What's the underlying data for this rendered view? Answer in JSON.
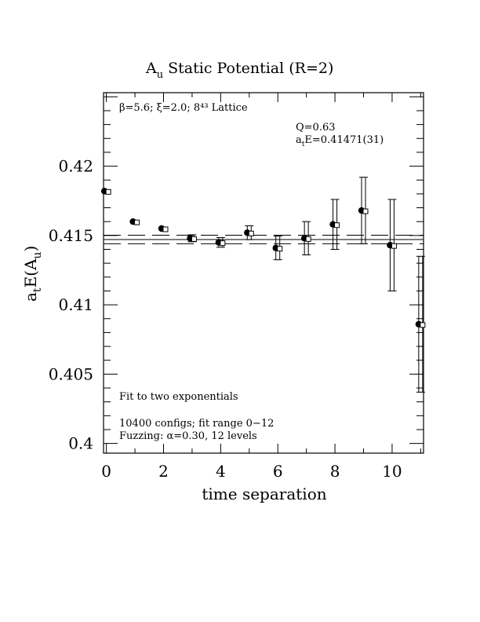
{
  "chart_data": {
    "type": "scatter",
    "title": "A",
    "title_sub": "u",
    "title_rest": " Static Potential (R=2)",
    "xlabel": "time separation",
    "ylabel_main": "a",
    "ylabel_sub1": "t",
    "ylabel_mid": "E(A",
    "ylabel_sub2": "u",
    "ylabel_end": ")",
    "xlim": [
      -0.1,
      11.1
    ],
    "ylim": [
      0.3993,
      0.4253
    ],
    "xticks": [
      {
        "v": 0,
        "label": "0"
      },
      {
        "v": 2,
        "label": "2"
      },
      {
        "v": 4,
        "label": "4"
      },
      {
        "v": 6,
        "label": "6"
      },
      {
        "v": 8,
        "label": "8"
      },
      {
        "v": 10,
        "label": "10"
      }
    ],
    "yticks": [
      {
        "v": 0.4,
        "label": "0.4"
      },
      {
        "v": 0.405,
        "label": "0.405"
      },
      {
        "v": 0.41,
        "label": "0.41"
      },
      {
        "v": 0.415,
        "label": "0.415"
      },
      {
        "v": 0.42,
        "label": "0.42"
      }
    ],
    "series": [
      {
        "marker": "filled-circle",
        "points": [
          {
            "x": 0,
            "y": 0.4182,
            "err": 3e-05
          },
          {
            "x": 1,
            "y": 0.416,
            "err": 5e-05
          },
          {
            "x": 2,
            "y": 0.4155,
            "err": 5e-05
          },
          {
            "x": 3,
            "y": 0.4148,
            "err": 0.00025
          },
          {
            "x": 4,
            "y": 0.4145,
            "err": 0.00035
          },
          {
            "x": 5,
            "y": 0.4152,
            "err": 0.0005
          },
          {
            "x": 6,
            "y": 0.4141,
            "err": 0.00085
          },
          {
            "x": 7,
            "y": 0.4148,
            "err": 0.0012
          },
          {
            "x": 8,
            "y": 0.4158,
            "err": 0.0018
          },
          {
            "x": 9,
            "y": 0.4168,
            "err": 0.0024
          },
          {
            "x": 10,
            "y": 0.4143,
            "err": 0.0033
          },
          {
            "x": 11,
            "y": 0.4086,
            "err": 0.0049
          }
        ]
      },
      {
        "marker": "open-square",
        "points": [
          {
            "x": 0,
            "y": 0.4182
          },
          {
            "x": 1,
            "y": 0.416
          },
          {
            "x": 2,
            "y": 0.4155
          },
          {
            "x": 3,
            "y": 0.4148
          },
          {
            "x": 4,
            "y": 0.4145
          },
          {
            "x": 5,
            "y": 0.4152
          },
          {
            "x": 6,
            "y": 0.4141
          },
          {
            "x": 7,
            "y": 0.4148
          },
          {
            "x": 8,
            "y": 0.4158
          },
          {
            "x": 9,
            "y": 0.4168
          },
          {
            "x": 10,
            "y": 0.4143
          },
          {
            "x": 11,
            "y": 0.4086
          }
        ]
      }
    ],
    "fit": {
      "value": 0.41471,
      "error": 0.00031
    },
    "annotations": {
      "lattice": "β=5.6; ξ=2.0; 8⁴³ Lattice",
      "q": "Q=0.63",
      "energy_a": "a",
      "energy_sub": "t",
      "energy_rest": "E=0.41471(31)",
      "fit_desc": "Fit to two exponentials",
      "configs": "10400 configs; fit range 0−12",
      "fuzzing": "Fuzzing: α=0.30, 12 levels"
    }
  }
}
